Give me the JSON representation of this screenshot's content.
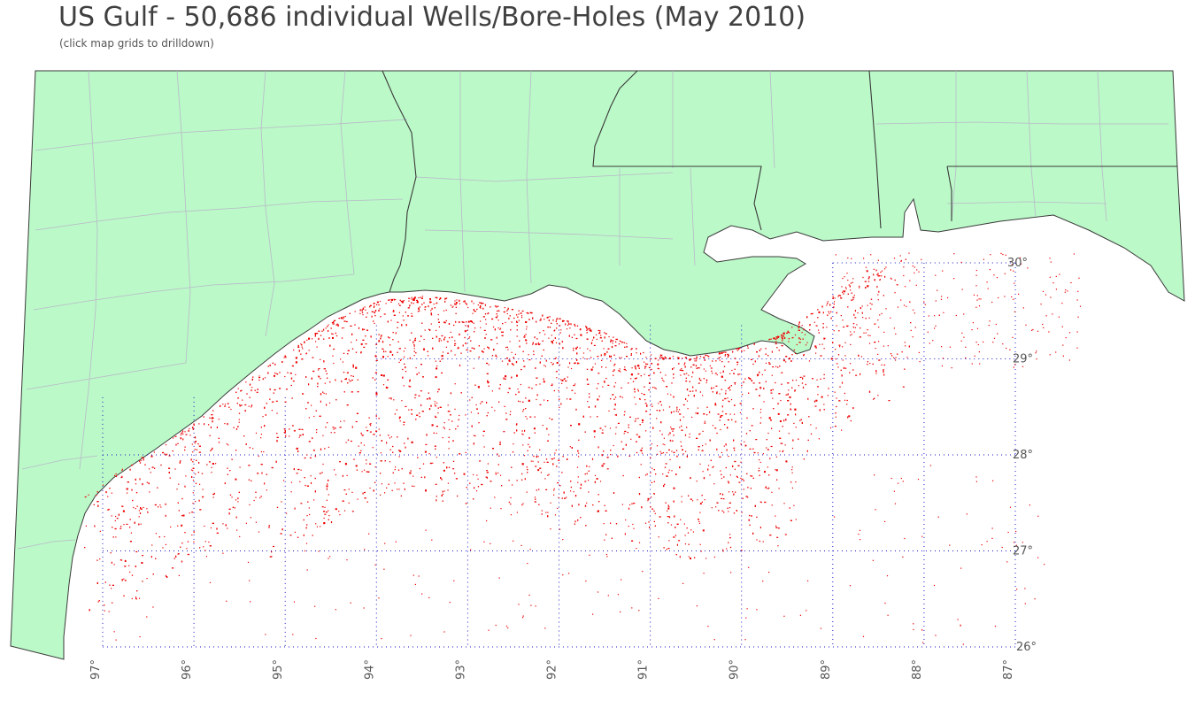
{
  "title": "US Gulf - 50,686 individual Wells/Bore-Holes (May 2010)",
  "subtitle": "(click map grids to drilldown)",
  "colors": {
    "land": "#bbf9c8",
    "coast": "#3a3a3a",
    "county_border": "#b9b9c9",
    "grid": "#1515c8",
    "wells": "#ee0000",
    "water": "#ffffff"
  },
  "map": {
    "lon_labels": [
      "97°",
      "96°",
      "95°",
      "94°",
      "93°",
      "92°",
      "91°",
      "90°",
      "89°",
      "88°",
      "87°"
    ],
    "lat_labels": [
      "30°",
      "29°",
      "28°",
      "27°",
      "26°"
    ],
    "well_count": 50686
  }
}
